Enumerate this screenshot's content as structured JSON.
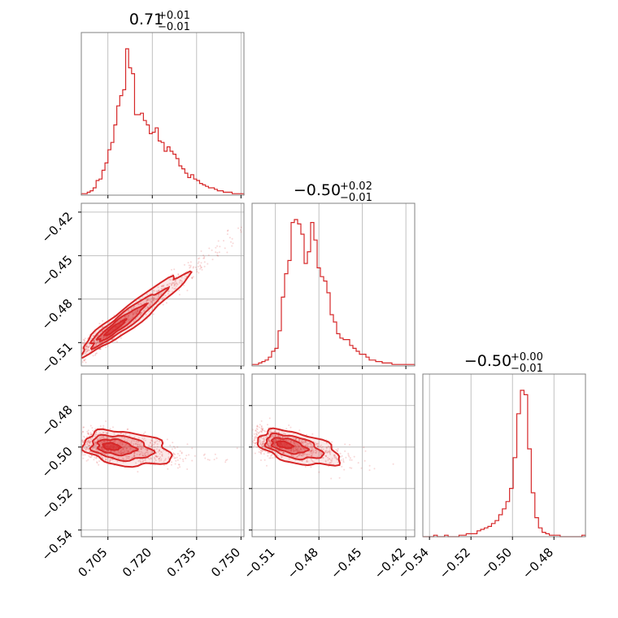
{
  "chart_data": {
    "type": "corner",
    "color": "#d62728",
    "panel_edge_color": "#808080",
    "grid": true,
    "titles": [
      {
        "median": "0.71",
        "plus": "+0.01",
        "minus": "−0.01"
      },
      {
        "median": "−0.50",
        "plus": "+0.02",
        "minus": "−0.01"
      },
      {
        "median": "−0.50",
        "plus": "+0.00",
        "minus": "−0.01"
      }
    ],
    "params": [
      {
        "range": [
          0.696,
          0.751
        ],
        "ticks": [
          0.705,
          0.72,
          0.735,
          0.75
        ],
        "tick_labels": [
          "0.705",
          "0.720",
          "0.735",
          "0.750"
        ]
      },
      {
        "range": [
          -0.5261,
          -0.4139
        ],
        "ticks": [
          -0.51,
          -0.48,
          -0.45,
          -0.42
        ],
        "tick_labels": [
          "−0.51",
          "−0.48",
          "−0.45",
          "−0.42"
        ]
      },
      {
        "range": [
          -0.5432,
          -0.4648
        ],
        "ticks": [
          -0.54,
          -0.52,
          -0.5,
          -0.48
        ],
        "tick_labels": [
          "−0.54",
          "−0.52",
          "−0.50",
          "−0.48"
        ]
      }
    ],
    "histograms": [
      {
        "edges": [
          0.696,
          0.751
        ],
        "counts": [
          1,
          1,
          2,
          3,
          5,
          10,
          11,
          17,
          22,
          31,
          36,
          48,
          61,
          68,
          72,
          100,
          87,
          83,
          55,
          55,
          56,
          51,
          48,
          42,
          43,
          46,
          37,
          36,
          30,
          33,
          30,
          28,
          25,
          20,
          18,
          15,
          12,
          14,
          11,
          10,
          8,
          7,
          6,
          5,
          5,
          4,
          3,
          3,
          2,
          2,
          2,
          1,
          1,
          1,
          1
        ]
      },
      {
        "edges": [
          -0.5261,
          -0.4139
        ],
        "counts": [
          1,
          1,
          2,
          3,
          4,
          6,
          10,
          12,
          24,
          47,
          63,
          72,
          98,
          100,
          97,
          90,
          70,
          78,
          98,
          86,
          67,
          61,
          58,
          50,
          35,
          30,
          22,
          19,
          18,
          18,
          14,
          12,
          10,
          8,
          8,
          6,
          4,
          4,
          3,
          3,
          2,
          2,
          2,
          1,
          1,
          1,
          1,
          1,
          1,
          1
        ]
      },
      {
        "edges": [
          -0.5432,
          -0.4648
        ],
        "counts": [
          0,
          0,
          0,
          1,
          0,
          0,
          1,
          0,
          0,
          0,
          1,
          1,
          2,
          2,
          2,
          4,
          5,
          6,
          7,
          9,
          11,
          15,
          19,
          24,
          33,
          54,
          84,
          100,
          97,
          60,
          30,
          13,
          6,
          3,
          2,
          1,
          1,
          1,
          0,
          0,
          0,
          0,
          0,
          0,
          1
        ]
      }
    ],
    "pairs": [
      {
        "x_param": 0,
        "y_param": 1,
        "center": [
          0.706,
          -0.502
        ],
        "slope": 1.33,
        "note": "strong positive correlation, contours at ~0.5/1/1.5 sigma"
      },
      {
        "x_param": 0,
        "y_param": 2,
        "center": [
          0.705,
          -0.4995
        ],
        "slope": -0.08,
        "note": "weak negative correlation"
      },
      {
        "x_param": 1,
        "y_param": 2,
        "center": [
          -0.506,
          -0.4985
        ],
        "slope": -0.07,
        "note": "weak negative correlation"
      }
    ]
  }
}
